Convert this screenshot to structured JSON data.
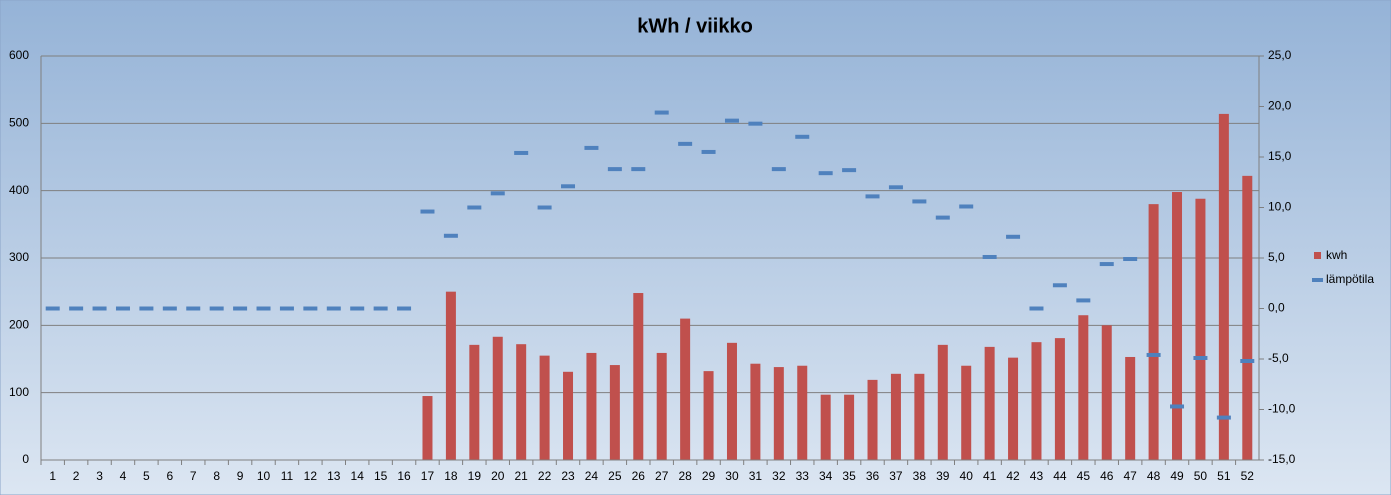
{
  "chart_data": {
    "type": "bar-line",
    "title": "kWh / viikko",
    "categories": [
      "1",
      "2",
      "3",
      "4",
      "5",
      "6",
      "7",
      "8",
      "9",
      "10",
      "11",
      "12",
      "13",
      "14",
      "15",
      "16",
      "17",
      "18",
      "19",
      "20",
      "21",
      "22",
      "23",
      "24",
      "25",
      "26",
      "27",
      "28",
      "29",
      "30",
      "31",
      "32",
      "33",
      "34",
      "35",
      "36",
      "37",
      "38",
      "39",
      "40",
      "41",
      "42",
      "43",
      "44",
      "45",
      "46",
      "47",
      "48",
      "49",
      "50",
      "51",
      "52"
    ],
    "series": [
      {
        "name": "kwh",
        "color": "#c0504d",
        "type": "bar",
        "values": [
          0,
          0,
          0,
          0,
          0,
          0,
          0,
          0,
          0,
          0,
          0,
          0,
          0,
          0,
          0,
          0,
          95,
          250,
          171,
          183,
          172,
          155,
          131,
          159,
          141,
          248,
          159,
          210,
          132,
          174,
          143,
          138,
          140,
          97,
          97,
          119,
          128,
          128,
          171,
          140,
          168,
          152,
          175,
          181,
          215,
          200,
          153,
          380,
          398,
          388,
          514,
          422
        ]
      },
      {
        "name": "lämpötila",
        "color": "#4f81bd",
        "type": "marker",
        "axis": "y2",
        "values": [
          0,
          0,
          0,
          0,
          0,
          0,
          0,
          0,
          0,
          0,
          0,
          0,
          0,
          0,
          0,
          0,
          9.6,
          7.2,
          10.0,
          11.4,
          15.4,
          10.0,
          12.1,
          15.9,
          13.8,
          13.8,
          19.4,
          16.3,
          15.5,
          18.6,
          18.3,
          13.8,
          17.0,
          13.4,
          13.7,
          11.1,
          12.0,
          10.6,
          9.0,
          10.1,
          5.1,
          7.1,
          0.0,
          2.3,
          0.8,
          4.4,
          4.9,
          -4.6,
          -9.7,
          -4.9,
          -10.8,
          -5.2
        ]
      }
    ],
    "ylim": [
      0,
      600
    ],
    "yticks": [
      0,
      100,
      200,
      300,
      400,
      500,
      600
    ],
    "y2lim": [
      -15,
      25
    ],
    "y2ticks": [
      {
        "value": -15,
        "label": "-15,0"
      },
      {
        "value": -10,
        "label": "-10,0"
      },
      {
        "value": -5,
        "label": "-5,0"
      },
      {
        "value": 0,
        "label": "0,0"
      },
      {
        "value": 5,
        "label": "5,0"
      },
      {
        "value": 10,
        "label": "10,0"
      },
      {
        "value": 15,
        "label": "15,0"
      },
      {
        "value": 20,
        "label": "20,0"
      },
      {
        "value": 25,
        "label": "25,0"
      }
    ],
    "grid": true,
    "legend": "right"
  }
}
